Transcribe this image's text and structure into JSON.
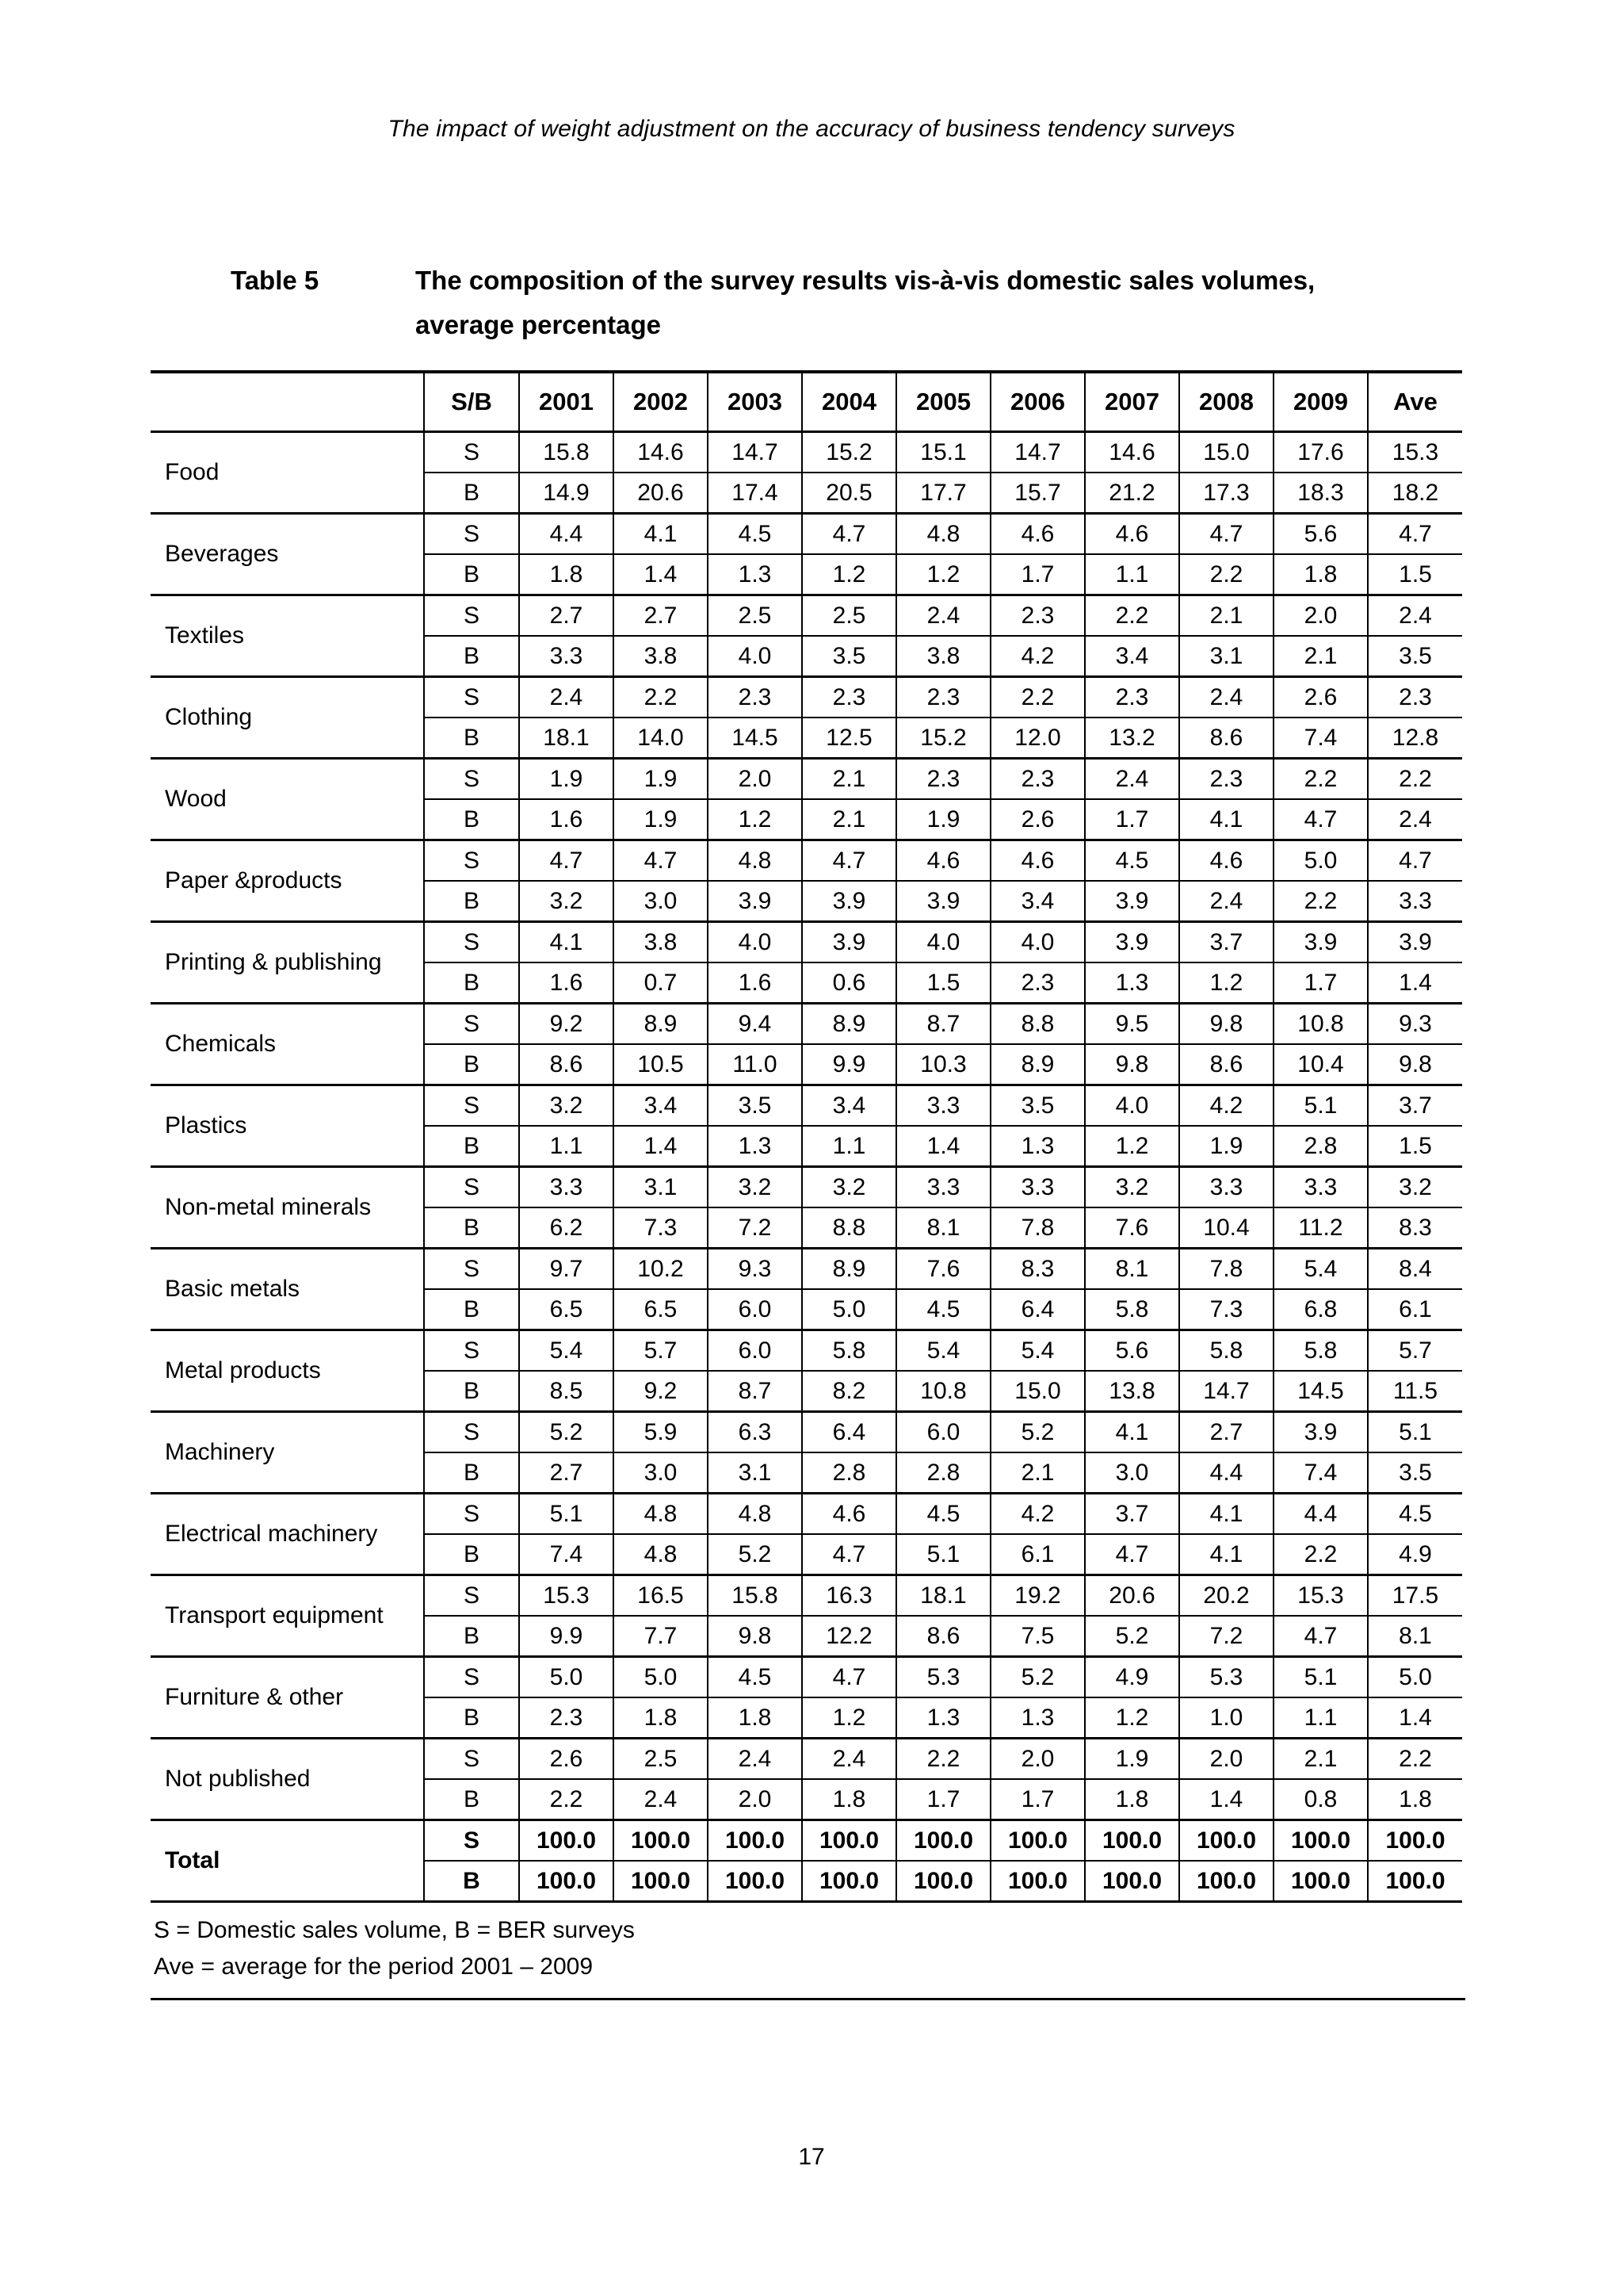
{
  "page": {
    "running_header": "The impact of weight adjustment on the accuracy of business tendency surveys",
    "page_number": "17"
  },
  "table5": {
    "label": "Table 5",
    "title_line1": "The composition of the survey results vis-à-vis domestic sales volumes,",
    "title_line2": "average percentage",
    "columns": [
      "S/B",
      "2001",
      "2002",
      "2003",
      "2004",
      "2005",
      "2006",
      "2007",
      "2008",
      "2009",
      "Ave"
    ],
    "row_labels": {
      "s": "S",
      "b": "B"
    },
    "rows": [
      {
        "category": "Food",
        "s": [
          "15.8",
          "14.6",
          "14.7",
          "15.2",
          "15.1",
          "14.7",
          "14.6",
          "15.0",
          "17.6",
          "15.3"
        ],
        "b": [
          "14.9",
          "20.6",
          "17.4",
          "20.5",
          "17.7",
          "15.7",
          "21.2",
          "17.3",
          "18.3",
          "18.2"
        ]
      },
      {
        "category": "Beverages",
        "s": [
          "4.4",
          "4.1",
          "4.5",
          "4.7",
          "4.8",
          "4.6",
          "4.6",
          "4.7",
          "5.6",
          "4.7"
        ],
        "b": [
          "1.8",
          "1.4",
          "1.3",
          "1.2",
          "1.2",
          "1.7",
          "1.1",
          "2.2",
          "1.8",
          "1.5"
        ]
      },
      {
        "category": "Textiles",
        "s": [
          "2.7",
          "2.7",
          "2.5",
          "2.5",
          "2.4",
          "2.3",
          "2.2",
          "2.1",
          "2.0",
          "2.4"
        ],
        "b": [
          "3.3",
          "3.8",
          "4.0",
          "3.5",
          "3.8",
          "4.2",
          "3.4",
          "3.1",
          "2.1",
          "3.5"
        ]
      },
      {
        "category": "Clothing",
        "s": [
          "2.4",
          "2.2",
          "2.3",
          "2.3",
          "2.3",
          "2.2",
          "2.3",
          "2.4",
          "2.6",
          "2.3"
        ],
        "b": [
          "18.1",
          "14.0",
          "14.5",
          "12.5",
          "15.2",
          "12.0",
          "13.2",
          "8.6",
          "7.4",
          "12.8"
        ]
      },
      {
        "category": "Wood",
        "s": [
          "1.9",
          "1.9",
          "2.0",
          "2.1",
          "2.3",
          "2.3",
          "2.4",
          "2.3",
          "2.2",
          "2.2"
        ],
        "b": [
          "1.6",
          "1.9",
          "1.2",
          "2.1",
          "1.9",
          "2.6",
          "1.7",
          "4.1",
          "4.7",
          "2.4"
        ]
      },
      {
        "category": "Paper &products",
        "s": [
          "4.7",
          "4.7",
          "4.8",
          "4.7",
          "4.6",
          "4.6",
          "4.5",
          "4.6",
          "5.0",
          "4.7"
        ],
        "b": [
          "3.2",
          "3.0",
          "3.9",
          "3.9",
          "3.9",
          "3.4",
          "3.9",
          "2.4",
          "2.2",
          "3.3"
        ]
      },
      {
        "category": "Printing & publishing",
        "s": [
          "4.1",
          "3.8",
          "4.0",
          "3.9",
          "4.0",
          "4.0",
          "3.9",
          "3.7",
          "3.9",
          "3.9"
        ],
        "b": [
          "1.6",
          "0.7",
          "1.6",
          "0.6",
          "1.5",
          "2.3",
          "1.3",
          "1.2",
          "1.7",
          "1.4"
        ]
      },
      {
        "category": "Chemicals",
        "s": [
          "9.2",
          "8.9",
          "9.4",
          "8.9",
          "8.7",
          "8.8",
          "9.5",
          "9.8",
          "10.8",
          "9.3"
        ],
        "b": [
          "8.6",
          "10.5",
          "11.0",
          "9.9",
          "10.3",
          "8.9",
          "9.8",
          "8.6",
          "10.4",
          "9.8"
        ]
      },
      {
        "category": "Plastics",
        "s": [
          "3.2",
          "3.4",
          "3.5",
          "3.4",
          "3.3",
          "3.5",
          "4.0",
          "4.2",
          "5.1",
          "3.7"
        ],
        "b": [
          "1.1",
          "1.4",
          "1.3",
          "1.1",
          "1.4",
          "1.3",
          "1.2",
          "1.9",
          "2.8",
          "1.5"
        ]
      },
      {
        "category": "Non-metal minerals",
        "s": [
          "3.3",
          "3.1",
          "3.2",
          "3.2",
          "3.3",
          "3.3",
          "3.2",
          "3.3",
          "3.3",
          "3.2"
        ],
        "b": [
          "6.2",
          "7.3",
          "7.2",
          "8.8",
          "8.1",
          "7.8",
          "7.6",
          "10.4",
          "11.2",
          "8.3"
        ]
      },
      {
        "category": "Basic metals",
        "s": [
          "9.7",
          "10.2",
          "9.3",
          "8.9",
          "7.6",
          "8.3",
          "8.1",
          "7.8",
          "5.4",
          "8.4"
        ],
        "b": [
          "6.5",
          "6.5",
          "6.0",
          "5.0",
          "4.5",
          "6.4",
          "5.8",
          "7.3",
          "6.8",
          "6.1"
        ]
      },
      {
        "category": "Metal products",
        "s": [
          "5.4",
          "5.7",
          "6.0",
          "5.8",
          "5.4",
          "5.4",
          "5.6",
          "5.8",
          "5.8",
          "5.7"
        ],
        "b": [
          "8.5",
          "9.2",
          "8.7",
          "8.2",
          "10.8",
          "15.0",
          "13.8",
          "14.7",
          "14.5",
          "11.5"
        ]
      },
      {
        "category": "Machinery",
        "s": [
          "5.2",
          "5.9",
          "6.3",
          "6.4",
          "6.0",
          "5.2",
          "4.1",
          "2.7",
          "3.9",
          "5.1"
        ],
        "b": [
          "2.7",
          "3.0",
          "3.1",
          "2.8",
          "2.8",
          "2.1",
          "3.0",
          "4.4",
          "7.4",
          "3.5"
        ]
      },
      {
        "category": "Electrical machinery",
        "s": [
          "5.1",
          "4.8",
          "4.8",
          "4.6",
          "4.5",
          "4.2",
          "3.7",
          "4.1",
          "4.4",
          "4.5"
        ],
        "b": [
          "7.4",
          "4.8",
          "5.2",
          "4.7",
          "5.1",
          "6.1",
          "4.7",
          "4.1",
          "2.2",
          "4.9"
        ]
      },
      {
        "category": "Transport equipment",
        "s": [
          "15.3",
          "16.5",
          "15.8",
          "16.3",
          "18.1",
          "19.2",
          "20.6",
          "20.2",
          "15.3",
          "17.5"
        ],
        "b": [
          "9.9",
          "7.7",
          "9.8",
          "12.2",
          "8.6",
          "7.5",
          "5.2",
          "7.2",
          "4.7",
          "8.1"
        ]
      },
      {
        "category": "Furniture & other",
        "s": [
          "5.0",
          "5.0",
          "4.5",
          "4.7",
          "5.3",
          "5.2",
          "4.9",
          "5.3",
          "5.1",
          "5.0"
        ],
        "b": [
          "2.3",
          "1.8",
          "1.8",
          "1.2",
          "1.3",
          "1.3",
          "1.2",
          "1.0",
          "1.1",
          "1.4"
        ]
      },
      {
        "category": "Not published",
        "s": [
          "2.6",
          "2.5",
          "2.4",
          "2.4",
          "2.2",
          "2.0",
          "1.9",
          "2.0",
          "2.1",
          "2.2"
        ],
        "b": [
          "2.2",
          "2.4",
          "2.0",
          "1.8",
          "1.7",
          "1.7",
          "1.8",
          "1.4",
          "0.8",
          "1.8"
        ]
      },
      {
        "category": "Total",
        "bold": true,
        "s": [
          "100.0",
          "100.0",
          "100.0",
          "100.0",
          "100.0",
          "100.0",
          "100.0",
          "100.0",
          "100.0",
          "100.0"
        ],
        "b": [
          "100.0",
          "100.0",
          "100.0",
          "100.0",
          "100.0",
          "100.0",
          "100.0",
          "100.0",
          "100.0",
          "100.0"
        ]
      }
    ],
    "notes": [
      "S = Domestic sales volume, B = BER surveys",
      "Ave = average for the period 2001 – 2009"
    ]
  }
}
